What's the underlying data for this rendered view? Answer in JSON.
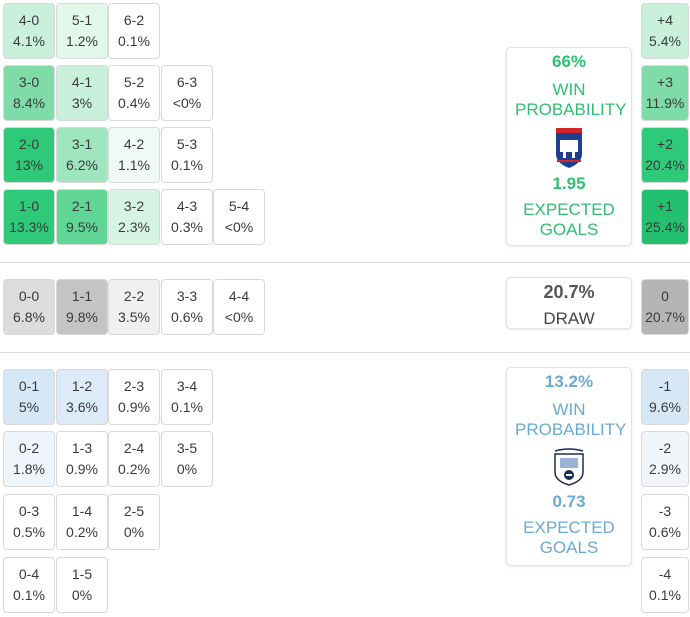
{
  "home": {
    "win_pct": "66%",
    "win_label": "WIN PROBABILITY",
    "xg": "1.95",
    "xg_label": "EXPECTED GOALS",
    "color": "#2fbf71",
    "scores": [
      {
        "score": "4-0",
        "pct": "4.1%"
      },
      {
        "score": "5-1",
        "pct": "1.2%"
      },
      {
        "score": "6-2",
        "pct": "0.1%"
      },
      {
        "score": "3-0",
        "pct": "8.4%"
      },
      {
        "score": "4-1",
        "pct": "3%"
      },
      {
        "score": "5-2",
        "pct": "0.4%"
      },
      {
        "score": "6-3",
        "pct": "<0%"
      },
      {
        "score": "2-0",
        "pct": "13%"
      },
      {
        "score": "3-1",
        "pct": "6.2%"
      },
      {
        "score": "4-2",
        "pct": "1.1%"
      },
      {
        "score": "5-3",
        "pct": "0.1%"
      },
      {
        "score": "1-0",
        "pct": "13.3%"
      },
      {
        "score": "2-1",
        "pct": "9.5%"
      },
      {
        "score": "3-2",
        "pct": "2.3%"
      },
      {
        "score": "4-3",
        "pct": "0.3%"
      },
      {
        "score": "5-4",
        "pct": "<0%"
      }
    ],
    "margins": [
      {
        "margin": "+4",
        "pct": "5.4%"
      },
      {
        "margin": "+3",
        "pct": "11.9%"
      },
      {
        "margin": "+2",
        "pct": "20.4%"
      },
      {
        "margin": "+1",
        "pct": "25.4%"
      }
    ]
  },
  "draw": {
    "pct": "20.7%",
    "label": "DRAW",
    "scores": [
      {
        "score": "0-0",
        "pct": "6.8%"
      },
      {
        "score": "1-1",
        "pct": "9.8%"
      },
      {
        "score": "2-2",
        "pct": "3.5%"
      },
      {
        "score": "3-3",
        "pct": "0.6%"
      },
      {
        "score": "4-4",
        "pct": "<0%"
      }
    ],
    "margin": {
      "margin": "0",
      "pct": "20.7%"
    }
  },
  "away": {
    "win_pct": "13.2%",
    "win_label": "WIN PROBABILITY",
    "xg": "0.73",
    "xg_label": "EXPECTED GOALS",
    "color": "#6aaad3",
    "scores": [
      {
        "score": "0-1",
        "pct": "5%"
      },
      {
        "score": "1-2",
        "pct": "3.6%"
      },
      {
        "score": "2-3",
        "pct": "0.9%"
      },
      {
        "score": "3-4",
        "pct": "0.1%"
      },
      {
        "score": "0-2",
        "pct": "1.8%"
      },
      {
        "score": "1-3",
        "pct": "0.9%"
      },
      {
        "score": "2-4",
        "pct": "0.2%"
      },
      {
        "score": "3-5",
        "pct": "0%"
      },
      {
        "score": "0-3",
        "pct": "0.5%"
      },
      {
        "score": "1-4",
        "pct": "0.2%"
      },
      {
        "score": "2-5",
        "pct": "0%"
      },
      {
        "score": "0-4",
        "pct": "0.1%"
      },
      {
        "score": "1-5",
        "pct": "0%"
      }
    ],
    "margins": [
      {
        "margin": "-1",
        "pct": "9.6%"
      },
      {
        "margin": "-2",
        "pct": "2.9%"
      },
      {
        "margin": "-3",
        "pct": "0.6%"
      },
      {
        "margin": "-4",
        "pct": "0.1%"
      }
    ]
  }
}
